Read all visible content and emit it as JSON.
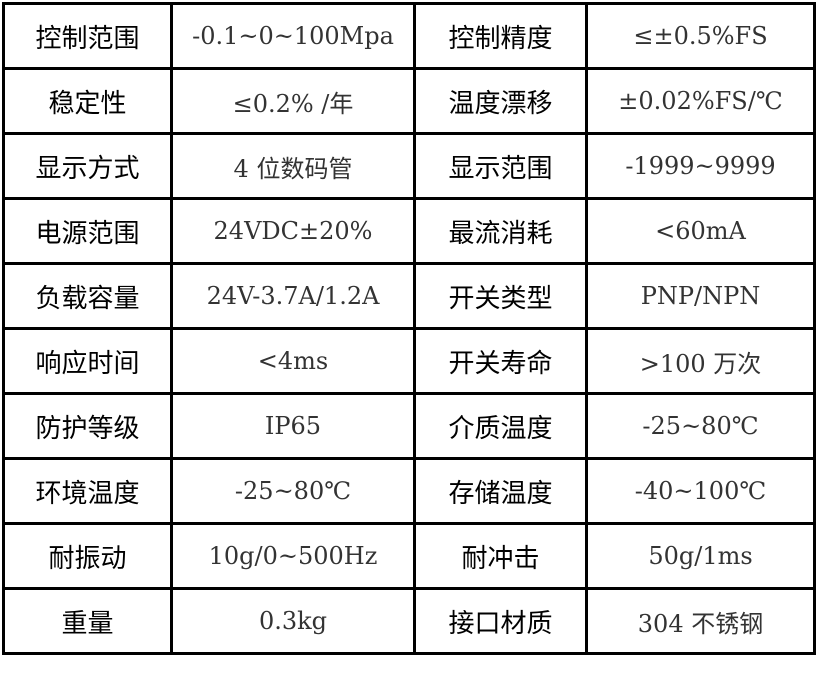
{
  "rows": [
    [
      "控制范围",
      "-0.1~0~100Mpa",
      "控制精度",
      "≤±0.5%FS"
    ],
    [
      "稳定性",
      "≤0.2% /年",
      "温度漂移",
      "±0.02%FS/℃"
    ],
    [
      "显示方式",
      "4 位数码管",
      "显示范围",
      "-1999~9999"
    ],
    [
      "电源范围",
      "24VDC±20%",
      "最流消耗",
      "<60mA"
    ],
    [
      "负载容量",
      "24V-3.7A/1.2A",
      "开关类型",
      "PNP/NPN"
    ],
    [
      "响应时间",
      "<4ms",
      "开关寿命",
      ">100 万次"
    ],
    [
      "防护等级",
      "IP65",
      "介质温度",
      "-25~80℃"
    ],
    [
      "环境温度",
      "-25~80℃",
      "存储温度",
      "-40~100℃"
    ],
    [
      "耐振动",
      "10g/0~500Hz",
      "耐冲击",
      "50g/1ms"
    ],
    [
      "重量",
      "0.3kg",
      "接口材质",
      "304 不锈钢"
    ]
  ]
}
